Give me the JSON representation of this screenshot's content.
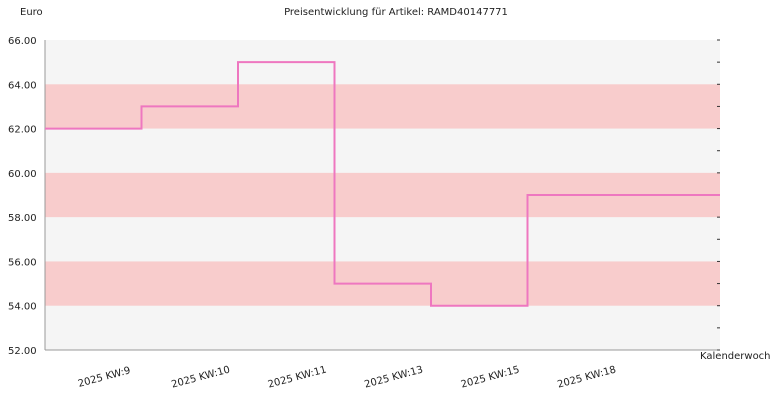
{
  "chart_data": {
    "type": "line",
    "title": "Preisentwicklung für Artikel: RAMD40147771",
    "ylabel": "Euro",
    "xlabel": "Kalenderwoche",
    "ylim": [
      52,
      66
    ],
    "y_ticks": [
      "52.00",
      "54.00",
      "56.00",
      "58.00",
      "60.00",
      "62.00",
      "64.00",
      "66.00"
    ],
    "x_labels": [
      "2025 KW:9",
      "2025 KW:10",
      "2025 KW:11",
      "2025 KW:13",
      "2025 KW:15",
      "2025 KW:18"
    ],
    "step": true,
    "grid": "alternating horizontal bands",
    "series": [
      {
        "values": [
          62,
          63,
          65,
          55,
          54,
          59
        ]
      }
    ]
  },
  "colors": {
    "line": "#ee77c0",
    "band_light": "#f5f5f5",
    "band_pink": "#f8cccc",
    "axis": "#999999",
    "text": "#222222"
  }
}
